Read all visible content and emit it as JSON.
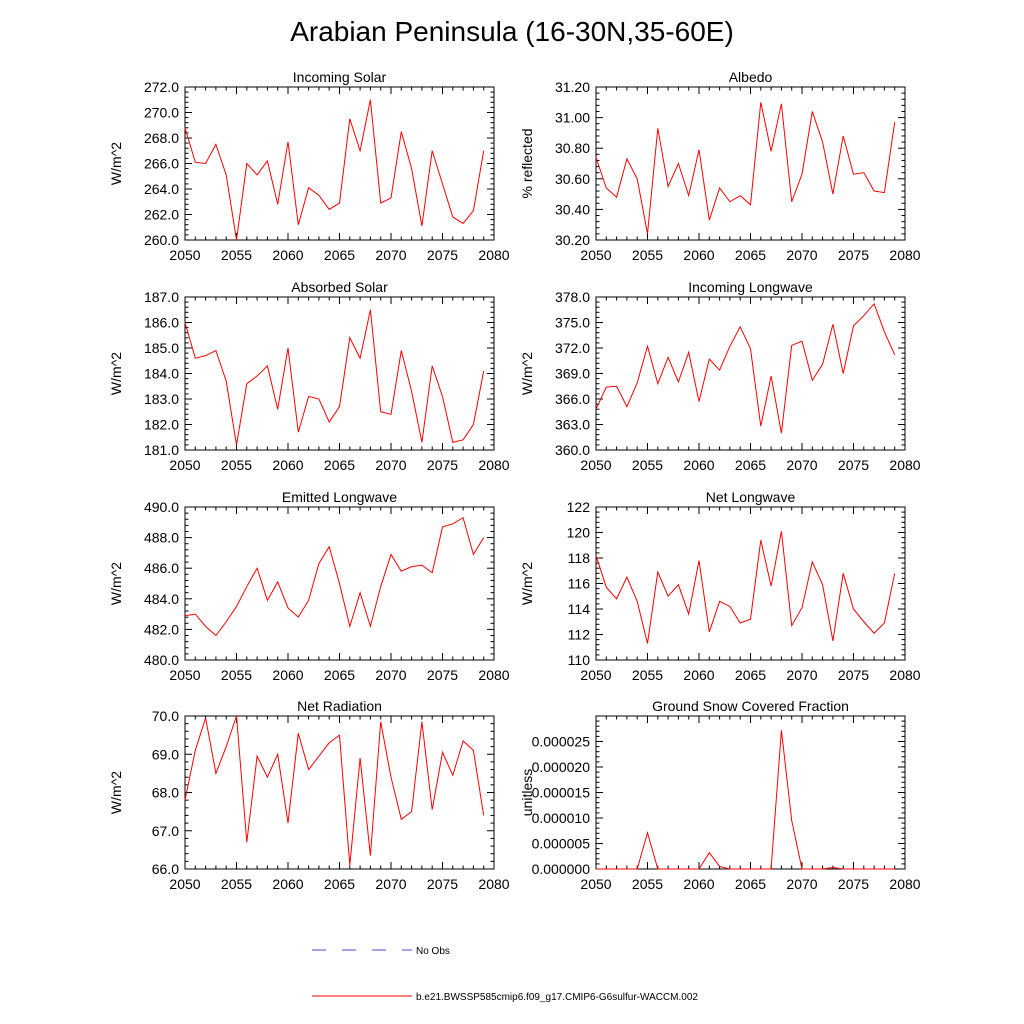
{
  "figure": {
    "title": "Arabian Peninsula (16-30N,35-60E)",
    "legend": [
      {
        "label": "No Obs",
        "style": "dashed",
        "color": "#4a4ad0"
      },
      {
        "label": "b.e21.BWSSP585cmip6.f09_g17.CMIP6-G6sulfur-WACCM.002",
        "style": "solid",
        "color": "#ff0000"
      }
    ]
  },
  "chart_data": [
    {
      "type": "line",
      "title": "Incoming Solar",
      "ylabel": "W/m^2",
      "xlim": [
        2050,
        2080
      ],
      "ylim": [
        260,
        272
      ],
      "yticks": [
        "260.0",
        "262.0",
        "264.0",
        "266.0",
        "268.0",
        "270.0",
        "272.0"
      ],
      "xticks": [
        "2050",
        "2055",
        "2060",
        "2065",
        "2070",
        "2075",
        "2080"
      ],
      "series": [
        {
          "color": "#ff0000",
          "x": [
            2050,
            2051,
            2052,
            2053,
            2054,
            2055,
            2056,
            2057,
            2058,
            2059,
            2060,
            2061,
            2062,
            2063,
            2064,
            2065,
            2066,
            2067,
            2068,
            2069,
            2070,
            2071,
            2072,
            2073,
            2074,
            2075,
            2076,
            2077,
            2078,
            2079
          ],
          "values": [
            268.8,
            266.1,
            266.0,
            267.5,
            265.1,
            260.0,
            266.0,
            265.1,
            266.2,
            262.8,
            267.7,
            261.2,
            264.1,
            263.5,
            262.4,
            262.9,
            269.5,
            267.0,
            271.0,
            262.9,
            263.3,
            268.5,
            265.6,
            261.1,
            267.0,
            264.4,
            261.8,
            261.3,
            262.3,
            267.0
          ]
        }
      ]
    },
    {
      "type": "line",
      "title": "Albedo",
      "ylabel": "% reflected",
      "xlim": [
        2050,
        2080
      ],
      "ylim": [
        30.2,
        31.2
      ],
      "yticks": [
        "30.20",
        "30.40",
        "30.60",
        "30.80",
        "31.00",
        "31.20"
      ],
      "xticks": [
        "2050",
        "2055",
        "2060",
        "2065",
        "2070",
        "2075",
        "2080"
      ],
      "series": [
        {
          "color": "#ff0000",
          "x": [
            2050,
            2051,
            2052,
            2053,
            2054,
            2055,
            2056,
            2057,
            2058,
            2059,
            2060,
            2061,
            2062,
            2063,
            2064,
            2065,
            2066,
            2067,
            2068,
            2069,
            2070,
            2071,
            2072,
            2073,
            2074,
            2075,
            2076,
            2077,
            2078,
            2079
          ],
          "values": [
            30.74,
            30.54,
            30.48,
            30.73,
            30.6,
            30.24,
            30.93,
            30.55,
            30.7,
            30.49,
            30.79,
            30.33,
            30.54,
            30.45,
            30.49,
            30.43,
            31.1,
            30.78,
            31.09,
            30.45,
            30.63,
            31.04,
            30.84,
            30.5,
            30.88,
            30.63,
            30.64,
            30.52,
            30.51,
            30.97
          ]
        }
      ]
    },
    {
      "type": "line",
      "title": "Absorbed Solar",
      "ylabel": "W/m^2",
      "xlim": [
        2050,
        2080
      ],
      "ylim": [
        181,
        187
      ],
      "yticks": [
        "181.0",
        "182.0",
        "183.0",
        "184.0",
        "185.0",
        "186.0",
        "187.0"
      ],
      "xticks": [
        "2050",
        "2055",
        "2060",
        "2065",
        "2070",
        "2075",
        "2080"
      ],
      "series": [
        {
          "color": "#ff0000",
          "x": [
            2050,
            2051,
            2052,
            2053,
            2054,
            2055,
            2056,
            2057,
            2058,
            2059,
            2060,
            2061,
            2062,
            2063,
            2064,
            2065,
            2066,
            2067,
            2068,
            2069,
            2070,
            2071,
            2072,
            2073,
            2074,
            2075,
            2076,
            2077,
            2078,
            2079
          ],
          "values": [
            186.0,
            184.6,
            184.7,
            184.9,
            183.7,
            181.2,
            183.6,
            183.9,
            184.3,
            182.6,
            185.0,
            181.7,
            183.1,
            183.0,
            182.1,
            182.7,
            185.4,
            184.6,
            186.5,
            182.5,
            182.4,
            184.9,
            183.3,
            181.3,
            184.3,
            183.1,
            181.3,
            181.4,
            182.0,
            184.1
          ]
        }
      ]
    },
    {
      "type": "line",
      "title": "Incoming Longwave",
      "ylabel": "W/m^2",
      "xlim": [
        2050,
        2080
      ],
      "ylim": [
        360,
        378
      ],
      "yticks": [
        "360.0",
        "363.0",
        "366.0",
        "369.0",
        "372.0",
        "375.0",
        "378.0"
      ],
      "xticks": [
        "2050",
        "2055",
        "2060",
        "2065",
        "2070",
        "2075",
        "2080"
      ],
      "series": [
        {
          "color": "#ff0000",
          "x": [
            2050,
            2051,
            2052,
            2053,
            2054,
            2055,
            2056,
            2057,
            2058,
            2059,
            2060,
            2061,
            2062,
            2063,
            2064,
            2065,
            2066,
            2067,
            2068,
            2069,
            2070,
            2071,
            2072,
            2073,
            2074,
            2075,
            2076,
            2077,
            2078,
            2079
          ],
          "values": [
            364.8,
            367.4,
            367.5,
            365.1,
            367.9,
            372.2,
            367.8,
            370.9,
            368.0,
            371.5,
            365.7,
            370.7,
            369.4,
            372.2,
            374.5,
            371.9,
            362.8,
            368.7,
            362.0,
            372.3,
            372.8,
            368.2,
            370.1,
            374.8,
            369.0,
            374.6,
            375.8,
            377.2,
            373.9,
            371.2
          ]
        }
      ]
    },
    {
      "type": "line",
      "title": "Emitted Longwave",
      "ylabel": "W/m^2",
      "xlim": [
        2050,
        2080
      ],
      "ylim": [
        480,
        490
      ],
      "yticks": [
        "480.0",
        "482.0",
        "484.0",
        "486.0",
        "488.0",
        "490.0"
      ],
      "xticks": [
        "2050",
        "2055",
        "2060",
        "2065",
        "2070",
        "2075",
        "2080"
      ],
      "series": [
        {
          "color": "#ff0000",
          "x": [
            2050,
            2051,
            2052,
            2053,
            2054,
            2055,
            2056,
            2057,
            2058,
            2059,
            2060,
            2061,
            2062,
            2063,
            2064,
            2065,
            2066,
            2067,
            2068,
            2069,
            2070,
            2071,
            2072,
            2073,
            2074,
            2075,
            2076,
            2077,
            2078,
            2079
          ],
          "values": [
            482.9,
            483.0,
            482.2,
            481.6,
            482.5,
            483.5,
            484.8,
            486.0,
            483.9,
            485.1,
            483.4,
            482.8,
            483.9,
            486.3,
            487.4,
            485.0,
            482.2,
            484.4,
            482.2,
            484.8,
            486.9,
            485.8,
            486.1,
            486.2,
            485.7,
            488.7,
            488.9,
            489.3,
            486.9,
            488.0
          ]
        }
      ]
    },
    {
      "type": "line",
      "title": "Net Longwave",
      "ylabel": "W/m^2",
      "xlim": [
        2050,
        2080
      ],
      "ylim": [
        110,
        122
      ],
      "yticks": [
        "110",
        "112",
        "114",
        "116",
        "118",
        "120",
        "122"
      ],
      "xticks": [
        "2050",
        "2055",
        "2060",
        "2065",
        "2070",
        "2075",
        "2080"
      ],
      "series": [
        {
          "color": "#ff0000",
          "x": [
            2050,
            2051,
            2052,
            2053,
            2054,
            2055,
            2056,
            2057,
            2058,
            2059,
            2060,
            2061,
            2062,
            2063,
            2064,
            2065,
            2066,
            2067,
            2068,
            2069,
            2070,
            2071,
            2072,
            2073,
            2074,
            2075,
            2076,
            2077,
            2078,
            2079
          ],
          "values": [
            118.2,
            115.7,
            114.8,
            116.5,
            114.6,
            111.3,
            116.9,
            115.0,
            115.9,
            113.6,
            117.8,
            112.2,
            114.6,
            114.2,
            112.9,
            113.2,
            119.4,
            115.8,
            120.1,
            112.7,
            114.1,
            117.7,
            115.9,
            111.5,
            116.8,
            114.0,
            113.0,
            112.1,
            112.9,
            116.8
          ]
        }
      ]
    },
    {
      "type": "line",
      "title": "Net Radiation",
      "ylabel": "W/m^2",
      "xlim": [
        2050,
        2080
      ],
      "ylim": [
        66,
        70
      ],
      "yticks": [
        "66.0",
        "67.0",
        "68.0",
        "69.0",
        "70.0"
      ],
      "xticks": [
        "2050",
        "2055",
        "2060",
        "2065",
        "2070",
        "2075",
        "2080"
      ],
      "series": [
        {
          "color": "#ff0000",
          "x": [
            2050,
            2051,
            2052,
            2053,
            2054,
            2055,
            2056,
            2057,
            2058,
            2059,
            2060,
            2061,
            2062,
            2063,
            2064,
            2065,
            2066,
            2067,
            2068,
            2069,
            2070,
            2071,
            2072,
            2073,
            2074,
            2075,
            2076,
            2077,
            2078,
            2079
          ],
          "values": [
            67.8,
            69.1,
            69.95,
            68.5,
            69.2,
            70.0,
            66.7,
            68.95,
            68.4,
            69.0,
            67.2,
            69.55,
            68.6,
            68.95,
            69.3,
            69.5,
            66.1,
            68.9,
            66.35,
            69.85,
            68.4,
            67.3,
            67.5,
            69.85,
            67.55,
            69.05,
            68.45,
            69.35,
            69.1,
            67.4
          ]
        }
      ]
    },
    {
      "type": "line",
      "title": "Ground Snow Covered Fraction",
      "ylabel": "unitless",
      "xlim": [
        2050,
        2080
      ],
      "ylim": [
        0,
        3e-05
      ],
      "yticks": [
        "0.000000",
        "0.000005",
        "0.000010",
        "0.000015",
        "0.000020",
        "0.000025"
      ],
      "xticks": [
        "2050",
        "2055",
        "2060",
        "2065",
        "2070",
        "2075",
        "2080"
      ],
      "series": [
        {
          "color": "#ff0000",
          "x": [
            2050,
            2051,
            2052,
            2053,
            2054,
            2055,
            2056,
            2057,
            2058,
            2059,
            2060,
            2061,
            2062,
            2063,
            2064,
            2065,
            2066,
            2067,
            2068,
            2069,
            2070,
            2071,
            2072,
            2073,
            2074,
            2075,
            2076,
            2077,
            2078,
            2079
          ],
          "values": [
            0,
            0,
            0,
            0,
            0,
            7.1e-06,
            0,
            0,
            0,
            0,
            0,
            3.2e-06,
            5e-07,
            0,
            0,
            0,
            0,
            0,
            2.72e-05,
            9.5e-06,
            0,
            0,
            0,
            3e-07,
            0,
            0,
            0,
            0,
            0,
            0
          ]
        }
      ]
    }
  ]
}
